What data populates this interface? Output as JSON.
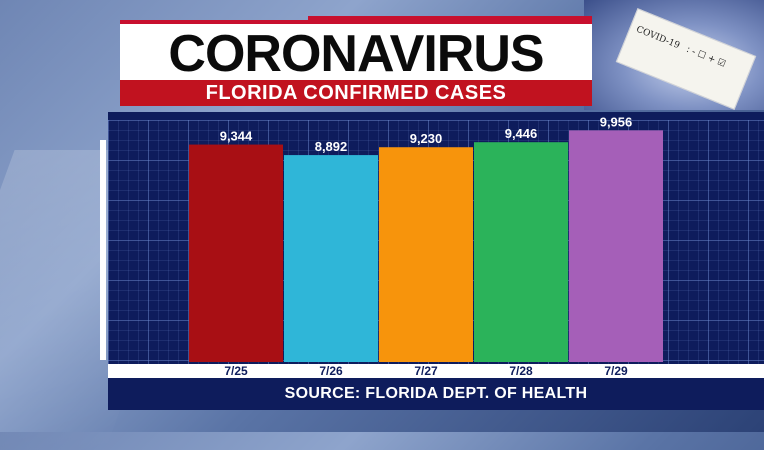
{
  "title": "CORONAVIRUS",
  "subtitle": "FLORIDA CONFIRMED CASES",
  "source": "SOURCE: FLORIDA DEPT. OF HEALTH",
  "vial": {
    "text": "COVID-19",
    "marks": ": - ☐ + ☑"
  },
  "chart_data": {
    "type": "bar",
    "categories": [
      "7/25",
      "7/26",
      "7/27",
      "7/28",
      "7/29"
    ],
    "values": [
      9344,
      8892,
      9230,
      9446,
      9956
    ],
    "value_labels": [
      "9,344",
      "8,892",
      "9,230",
      "9,446",
      "9,956"
    ],
    "title": "FLORIDA CONFIRMED CASES",
    "xlabel": "",
    "ylabel": "",
    "grid": true,
    "ylim": [
      0,
      10400
    ]
  },
  "colors": {
    "bars": [
      "#a80f14",
      "#2fb6d8",
      "#f7940c",
      "#2bb35a",
      "#a55fb8"
    ],
    "panel": "#0e1c5c",
    "title_red": "#c1121f"
  }
}
